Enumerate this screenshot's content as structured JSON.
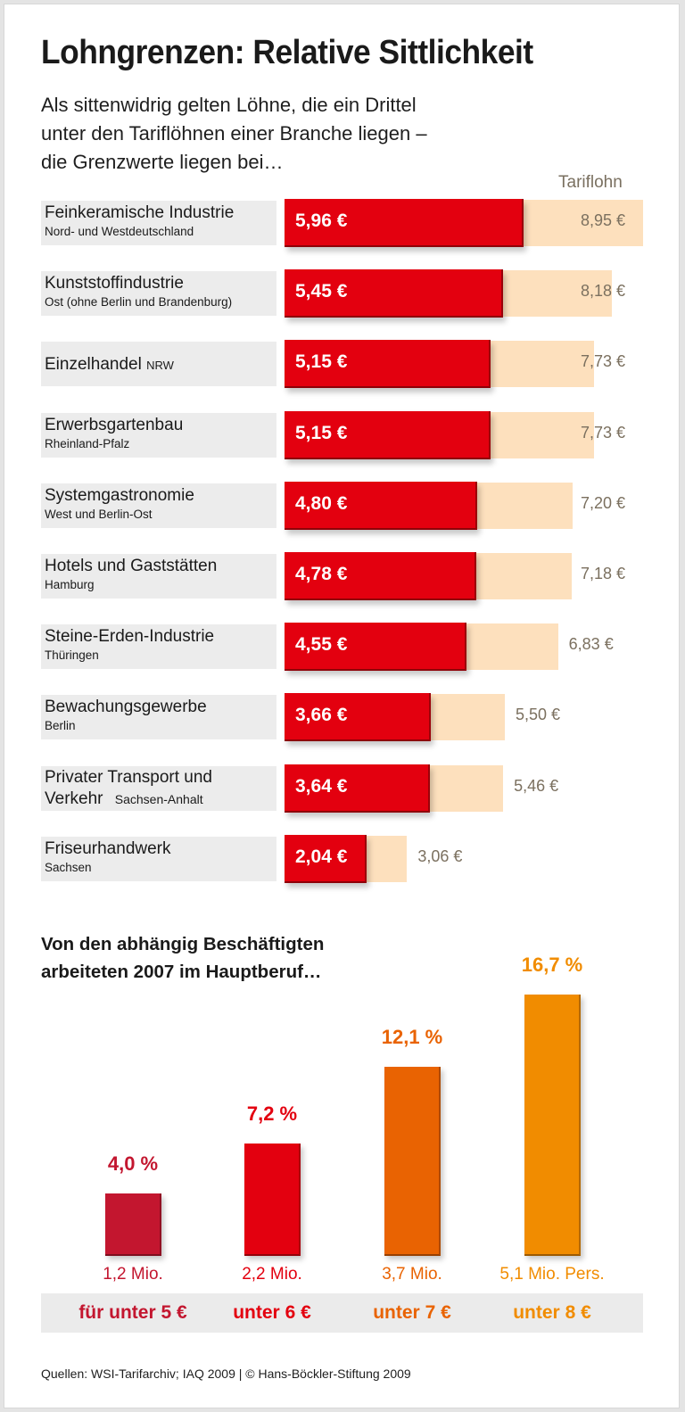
{
  "title": "Lohngrenzen: Relative Sittlichkeit",
  "subtitle": [
    "Als sittenwidrig gelten Löhne, die ein Drittel",
    "unter den Tariflöhnen einer Branche liegen –",
    "die Grenzwerte liegen bei…"
  ],
  "tarif_header": "Tariflohn",
  "colors": {
    "min_bar": "#e3000f",
    "tarif_bar": "#fde0bd",
    "label_bg": "#ececec",
    "tarif_text": "#7b705f",
    "cat1": "#c3162f",
    "cat2": "#e3000f",
    "cat3": "#e96302",
    "cat4": "#f18c00"
  },
  "rows": [
    {
      "name": "Feinkeramische Industrie",
      "region": "Nord- und Westdeutschland",
      "min_label": "5,96 €",
      "tarif_label": "8,95 €"
    },
    {
      "name": "Kunststoffindustrie",
      "region": "Ost (ohne Berlin und Brandenburg)",
      "min_label": "5,45 €",
      "tarif_label": "8,18 €"
    },
    {
      "name": "Einzelhandel",
      "region": "NRW",
      "inline_region": true,
      "min_label": "5,15 €",
      "tarif_label": "7,73 €"
    },
    {
      "name": "Erwerbsgartenbau",
      "region": "Rheinland-Pfalz",
      "min_label": "5,15 €",
      "tarif_label": "7,73 €"
    },
    {
      "name": "Systemgastronomie",
      "region": "West und Berlin-Ost",
      "min_label": "4,80 €",
      "tarif_label": "7,20 €"
    },
    {
      "name": "Hotels und Gaststätten",
      "region": "Hamburg",
      "min_label": "4,78 €",
      "tarif_label": "7,18 €"
    },
    {
      "name": "Steine-Erden-Industrie",
      "region": "Thüringen",
      "min_label": "4,55 €",
      "tarif_label": "6,83 €"
    },
    {
      "name": "Bewachungsgewerbe",
      "region": "Berlin",
      "min_label": "3,66 €",
      "tarif_label": "5,50 €"
    },
    {
      "name": "Privater Transport und Verkehr",
      "name_line1": "Privater Transport und",
      "name_line2": "Verkehr",
      "region": "Sachsen-Anhalt",
      "min_label": "3,64 €",
      "tarif_label": "5,46 €"
    },
    {
      "name": "Friseurhandwerk",
      "region": "Sachsen",
      "min_label": "2,04 €",
      "tarif_label": "3,06 €"
    }
  ],
  "section2": {
    "title_line1": "Von den abhängig Beschäftigten",
    "title_line2": "arbeiteten 2007 im Hauptberuf…",
    "bars": [
      {
        "pct_label": "4,0 %",
        "count_label": "1,2 Mio.",
        "category": "für unter 5 €"
      },
      {
        "pct_label": "7,2 %",
        "count_label": "2,2 Mio.",
        "category": "unter 6 €"
      },
      {
        "pct_label": "12,1 %",
        "count_label": "3,7 Mio.",
        "category": "unter 7 €"
      },
      {
        "pct_label": "16,7 %",
        "count_label": "5,1 Mio. Pers.",
        "category": "unter 8 €"
      }
    ]
  },
  "source": "Quellen: WSI-Tarifarchiv; IAQ 2009 | © Hans-Böckler-Stiftung 2009",
  "chart_data": [
    {
      "type": "bar",
      "orientation": "horizontal",
      "title": "Lohngrenzen: Relative Sittlichkeit",
      "xlabel": "",
      "ylabel": "",
      "unit": "€ per hour",
      "categories": [
        "Feinkeramische Industrie (Nord- und Westdeutschland)",
        "Kunststoffindustrie (Ost ohne Berlin und Brandenburg)",
        "Einzelhandel (NRW)",
        "Erwerbsgartenbau (Rheinland-Pfalz)",
        "Systemgastronomie (West und Berlin-Ost)",
        "Hotels und Gaststätten (Hamburg)",
        "Steine-Erden-Industrie (Thüringen)",
        "Bewachungsgewerbe (Berlin)",
        "Privater Transport und Verkehr (Sachsen-Anhalt)",
        "Friseurhandwerk (Sachsen)"
      ],
      "series": [
        {
          "name": "Grenzwert (sittenwidrig)",
          "values": [
            5.96,
            5.45,
            5.15,
            5.15,
            4.8,
            4.78,
            4.55,
            3.66,
            3.64,
            2.04
          ]
        },
        {
          "name": "Tariflohn",
          "values": [
            8.95,
            8.18,
            7.73,
            7.73,
            7.2,
            7.18,
            6.83,
            5.5,
            5.46,
            3.06
          ]
        }
      ],
      "xlim": [
        0,
        9
      ],
      "grid": false,
      "legend": "top-right"
    },
    {
      "type": "bar",
      "orientation": "vertical",
      "title": "Von den abhängig Beschäftigten arbeiteten 2007 im Hauptberuf…",
      "xlabel": "",
      "ylabel": "%",
      "categories": [
        "für unter 5 €",
        "unter 6 €",
        "unter 7 €",
        "unter 8 €"
      ],
      "values": [
        4.0,
        7.2,
        12.1,
        16.7
      ],
      "annotations": [
        "1,2 Mio.",
        "2,2 Mio.",
        "3,7 Mio.",
        "5,1 Mio. Pers."
      ],
      "ylim": [
        0,
        17
      ],
      "grid": false
    }
  ]
}
